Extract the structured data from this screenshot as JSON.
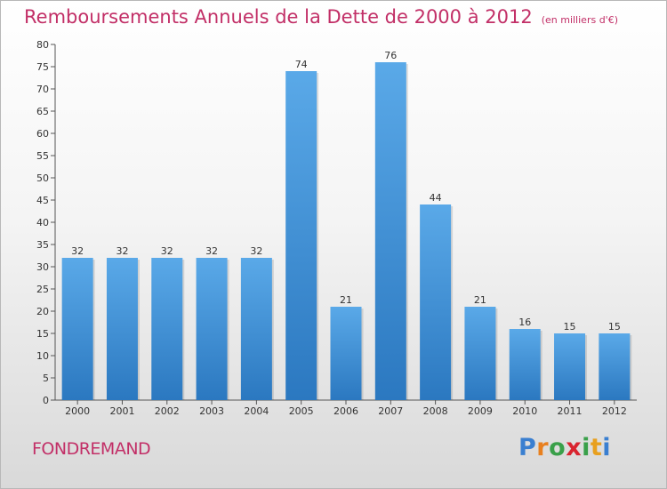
{
  "title": "Remboursements Annuels de la Dette de 2000 à 2012",
  "subtitle": "(en milliers d'€)",
  "commune": "FONDREMAND",
  "logo": {
    "letters": [
      "P",
      "r",
      "o",
      "x",
      "i",
      "t",
      "i"
    ],
    "colors": [
      "#3a7fd0",
      "#e8801f",
      "#3aa04a",
      "#d9242f",
      "#3aa04a",
      "#e8a01f",
      "#3a7fd0"
    ]
  },
  "colors": {
    "bar_light": "#5aa9e8",
    "bar_dark": "#2b78c0",
    "title": "#c22f67"
  },
  "chart_data": {
    "type": "bar",
    "categories": [
      "2000",
      "2001",
      "2002",
      "2003",
      "2004",
      "2005",
      "2006",
      "2007",
      "2008",
      "2009",
      "2010",
      "2011",
      "2012"
    ],
    "values": [
      32,
      32,
      32,
      32,
      32,
      74,
      21,
      76,
      44,
      21,
      16,
      15,
      15
    ],
    "ylim": [
      0,
      80
    ],
    "ytick_step": 5,
    "grid": false,
    "data_labels": true
  }
}
